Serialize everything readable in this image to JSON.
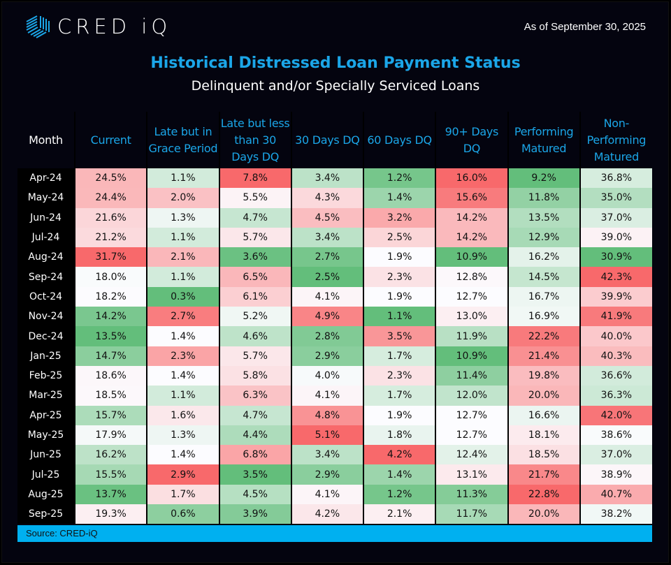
{
  "header": {
    "logo_text": "CRED iQ",
    "as_of": "As of September 30, 2025",
    "title": "Historical Distressed Loan Payment Status",
    "subtitle": "Delinquent and/or Specially Serviced Loans"
  },
  "footer": {
    "source": "Source:  CRED-iQ"
  },
  "colors": {
    "accent": "#1ba6e8",
    "source_bar": "#00b0f0",
    "high": "#f8696b",
    "low": "#63be7b",
    "mid": "#fcfcff"
  },
  "chart_data": {
    "type": "table",
    "title": "Historical Distressed Loan Payment Status",
    "columns": [
      "Month",
      "Current",
      "Late but in Grace Period",
      "Late but less than 30 Days DQ",
      "30 Days DQ",
      "60 Days DQ",
      "90+ Days DQ",
      "Performing Matured",
      "Non-Performing Matured"
    ],
    "rows": [
      [
        "Apr-24",
        "24.5%",
        "1.1%",
        "7.8%",
        "3.4%",
        "1.2%",
        "16.0%",
        "9.2%",
        "36.8%"
      ],
      [
        "May-24",
        "24.4%",
        "2.0%",
        "5.5%",
        "4.3%",
        "1.4%",
        "15.6%",
        "11.8%",
        "35.0%"
      ],
      [
        "Jun-24",
        "21.6%",
        "1.3%",
        "4.7%",
        "4.5%",
        "3.2%",
        "14.2%",
        "13.5%",
        "37.0%"
      ],
      [
        "Jul-24",
        "21.2%",
        "1.1%",
        "5.7%",
        "3.4%",
        "2.5%",
        "14.2%",
        "12.9%",
        "39.0%"
      ],
      [
        "Aug-24",
        "31.7%",
        "2.1%",
        "3.6%",
        "2.7%",
        "1.9%",
        "10.9%",
        "16.2%",
        "30.9%"
      ],
      [
        "Sep-24",
        "18.0%",
        "1.1%",
        "6.5%",
        "2.5%",
        "2.3%",
        "12.8%",
        "14.5%",
        "42.3%"
      ],
      [
        "Oct-24",
        "18.2%",
        "0.3%",
        "6.1%",
        "4.1%",
        "1.9%",
        "12.7%",
        "16.7%",
        "39.9%"
      ],
      [
        "Nov-24",
        "14.2%",
        "2.7%",
        "5.2%",
        "4.9%",
        "1.1%",
        "13.0%",
        "16.9%",
        "41.9%"
      ],
      [
        "Dec-24",
        "13.5%",
        "1.4%",
        "4.6%",
        "2.8%",
        "3.5%",
        "11.9%",
        "22.2%",
        "40.0%"
      ],
      [
        "Jan-25",
        "14.7%",
        "2.3%",
        "5.7%",
        "2.9%",
        "1.7%",
        "10.9%",
        "21.4%",
        "40.3%"
      ],
      [
        "Feb-25",
        "18.6%",
        "1.4%",
        "5.8%",
        "4.0%",
        "2.3%",
        "11.4%",
        "19.8%",
        "36.6%"
      ],
      [
        "Mar-25",
        "18.5%",
        "1.1%",
        "6.3%",
        "4.1%",
        "1.7%",
        "12.0%",
        "20.0%",
        "36.3%"
      ],
      [
        "Apr-25",
        "15.7%",
        "1.6%",
        "4.7%",
        "4.8%",
        "1.9%",
        "12.7%",
        "16.6%",
        "42.0%"
      ],
      [
        "May-25",
        "17.9%",
        "1.3%",
        "4.4%",
        "5.1%",
        "1.8%",
        "12.7%",
        "18.1%",
        "38.6%"
      ],
      [
        "Jun-25",
        "16.2%",
        "1.4%",
        "6.8%",
        "3.4%",
        "4.2%",
        "12.4%",
        "18.5%",
        "37.0%"
      ],
      [
        "Jul-25",
        "15.5%",
        "2.9%",
        "3.5%",
        "2.9%",
        "1.4%",
        "13.1%",
        "21.7%",
        "38.9%"
      ],
      [
        "Aug-25",
        "13.7%",
        "1.7%",
        "4.5%",
        "4.1%",
        "1.2%",
        "11.3%",
        "22.8%",
        "40.7%"
      ],
      [
        "Sep-25",
        "19.3%",
        "0.6%",
        "3.9%",
        "4.2%",
        "2.1%",
        "11.7%",
        "20.0%",
        "38.2%"
      ]
    ]
  }
}
